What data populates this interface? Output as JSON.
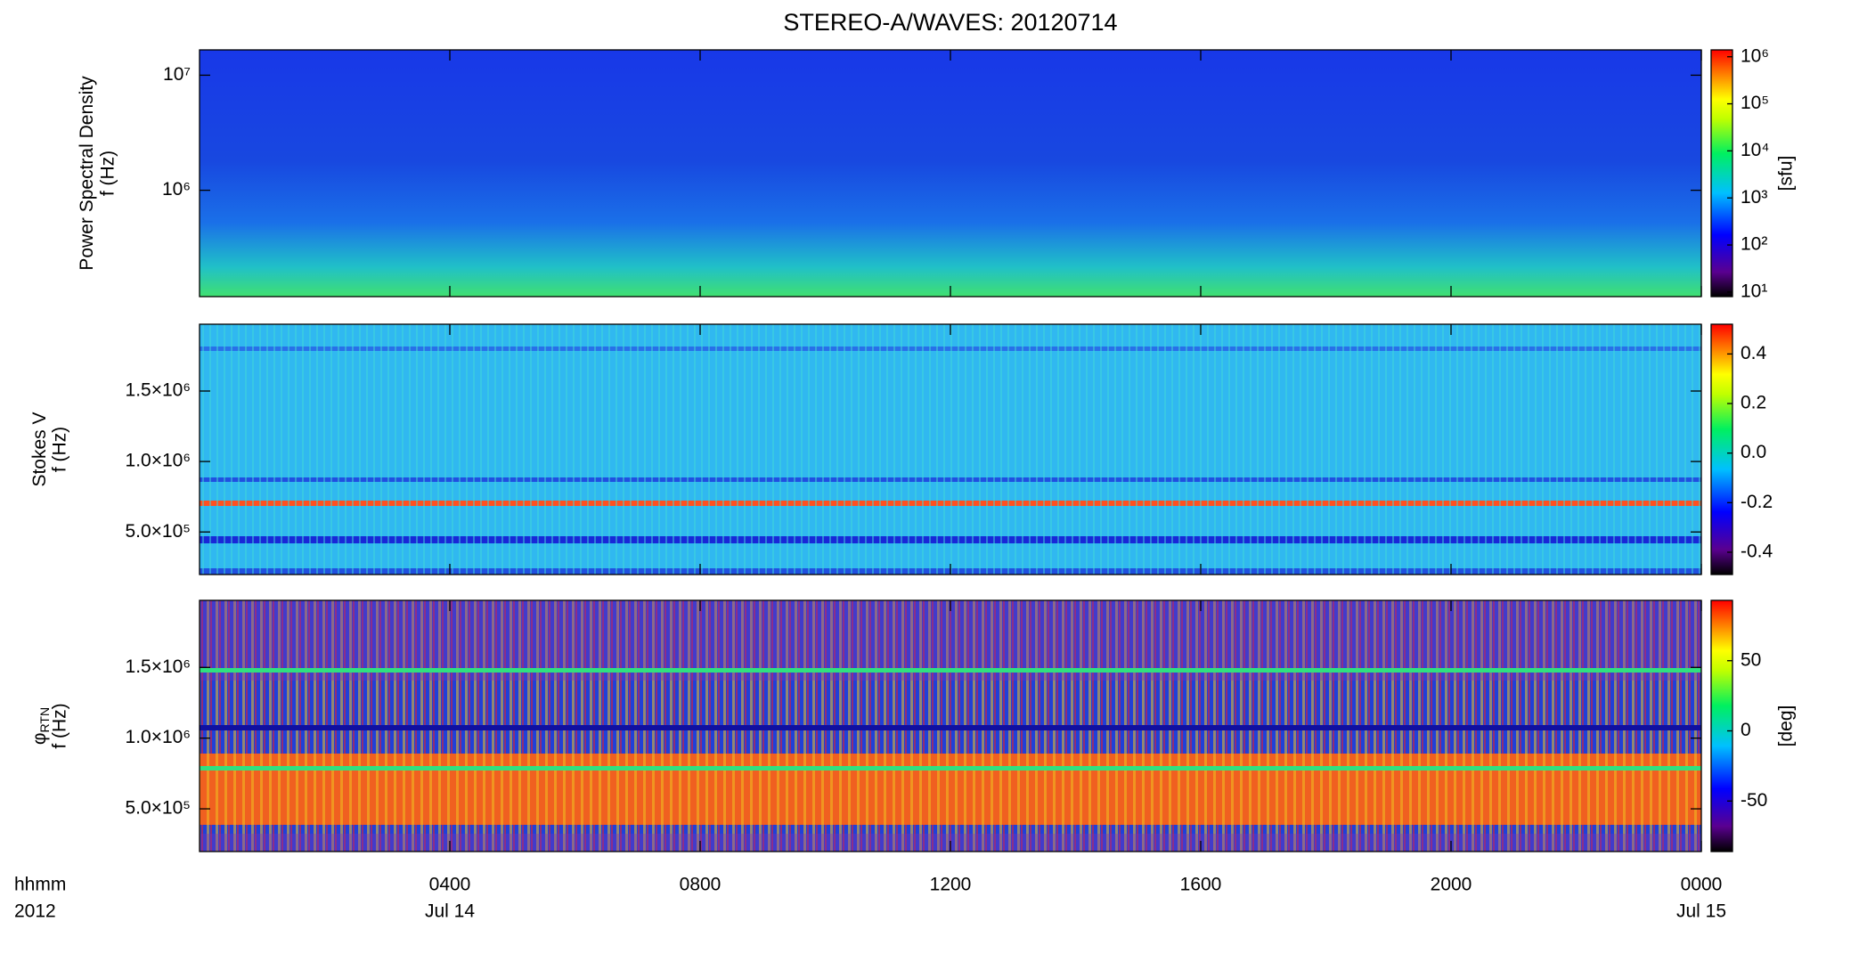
{
  "chart_data": [
    {
      "type": "spectrogram",
      "title": "STEREO-A/WAVES: 20120714",
      "quantity": "Power Spectral Density",
      "ylabel": "f (Hz)",
      "ylog": true,
      "ylim": [
        119000,
        16600000
      ],
      "yticks": [
        {
          "value": 1000000,
          "label": "10⁶"
        },
        {
          "value": 10000000,
          "label": "10⁷"
        }
      ],
      "colorbar": {
        "clim": [
          8,
          1400000
        ],
        "log": true,
        "label": "[sfu]",
        "ticks": [
          {
            "value": 10,
            "label": "10¹"
          },
          {
            "value": 100,
            "label": "10²"
          },
          {
            "value": 1000,
            "label": "10³"
          },
          {
            "value": 10000,
            "label": "10⁴"
          },
          {
            "value": 100000,
            "label": "10⁵"
          },
          {
            "value": 1000000,
            "label": "10⁶"
          }
        ]
      }
    },
    {
      "type": "spectrogram",
      "quantity": "Stokes V",
      "ylabel": "f (Hz)",
      "ylog": false,
      "ylim": [
        198000,
        1974000
      ],
      "yticks": [
        {
          "value": 500000,
          "label": "5.0×10⁵"
        },
        {
          "value": 1000000,
          "label": "1.0×10⁶"
        },
        {
          "value": 1500000,
          "label": "1.5×10⁶"
        }
      ],
      "colorbar": {
        "clim": [
          -0.49,
          0.52
        ],
        "log": false,
        "ticks": [
          -0.4,
          -0.2,
          {
            "value": 0,
            "label": "0.0"
          },
          0.2,
          0.4
        ]
      }
    },
    {
      "type": "spectrogram",
      "quantity": "φ",
      "quantity_subscript": "RTN",
      "ylabel": "f (Hz)",
      "ylog": false,
      "ylim": [
        198000,
        1974000
      ],
      "yticks": [
        {
          "value": 500000,
          "label": "5.0×10⁵"
        },
        {
          "value": 1000000,
          "label": "1.0×10⁶"
        },
        {
          "value": 1500000,
          "label": "1.5×10⁶"
        }
      ],
      "colorbar": {
        "clim": [
          -86,
          93
        ],
        "log": false,
        "label": "[deg]",
        "ticks": [
          -50,
          0,
          50
        ]
      },
      "xlim": [
        0,
        24
      ],
      "xticks": [
        {
          "value": 4,
          "label": "0400"
        },
        {
          "value": 8,
          "label": "0800"
        },
        {
          "value": 12,
          "label": "1200"
        },
        {
          "value": 16,
          "label": "1600"
        },
        {
          "value": 20,
          "label": "2000"
        },
        {
          "value": 24,
          "label": "0000"
        }
      ],
      "x_date_labels": [
        {
          "value": 4,
          "label": "Jul 14"
        },
        {
          "value": 24,
          "label": "Jul 15"
        }
      ],
      "x_axis_labels": [
        "hhmm",
        "2012"
      ]
    }
  ]
}
